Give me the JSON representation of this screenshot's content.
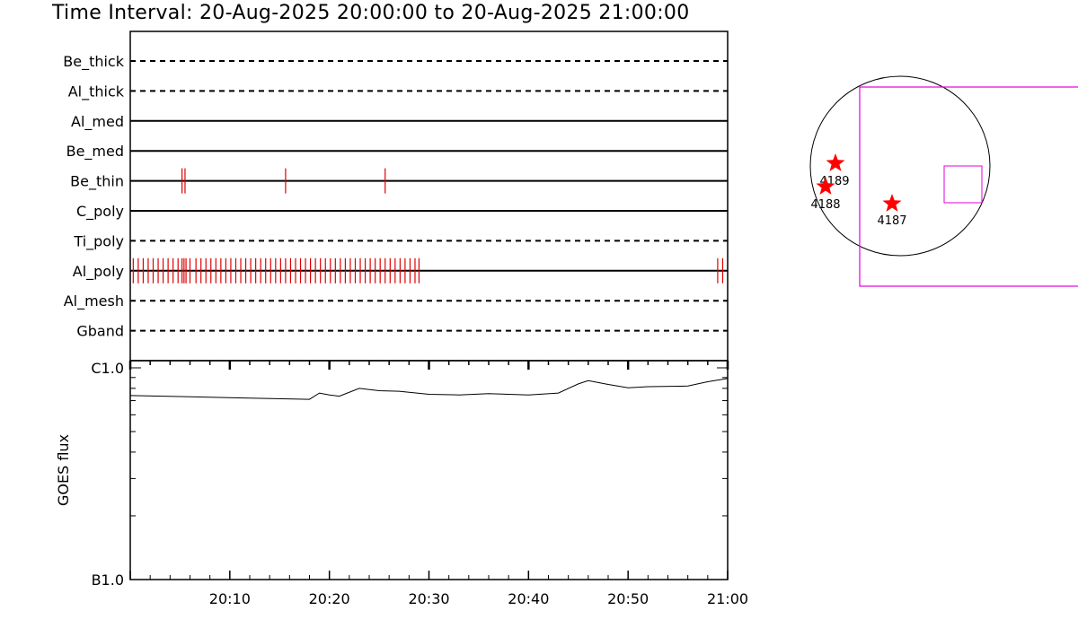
{
  "title": "Time Interval: 20-Aug-2025 20:00:00 to 20-Aug-2025 21:00:00",
  "colors": {
    "event": "#e00000",
    "fov": "#e000e0",
    "line": "#000000",
    "star": "#ff0000"
  },
  "chart_data": [
    {
      "type": "timeline",
      "x_range_minutes": [
        0,
        60
      ],
      "channels": [
        {
          "name": "Be_thick",
          "style": "dashed",
          "events": []
        },
        {
          "name": "Al_thick",
          "style": "dashed",
          "events": []
        },
        {
          "name": "Al_med",
          "style": "solid",
          "events": []
        },
        {
          "name": "Be_med",
          "style": "solid",
          "events": []
        },
        {
          "name": "Be_thin",
          "style": "solid",
          "events": [
            5.2,
            5.5,
            15.6,
            25.6
          ]
        },
        {
          "name": "C_poly",
          "style": "solid",
          "events": []
        },
        {
          "name": "Ti_poly",
          "style": "dashed",
          "events": []
        },
        {
          "name": "Al_poly",
          "style": "solid",
          "events": [
            0.3,
            0.8,
            1.3,
            1.8,
            2.3,
            2.8,
            3.3,
            3.8,
            4.3,
            4.8,
            5.2,
            5.4,
            5.6,
            6.0,
            6.6,
            7.1,
            7.6,
            8.1,
            8.6,
            9.1,
            9.6,
            10.1,
            10.6,
            11.1,
            11.6,
            12.1,
            12.6,
            13.1,
            13.6,
            14.1,
            14.6,
            15.1,
            15.6,
            16.1,
            16.6,
            17.1,
            17.6,
            18.1,
            18.6,
            19.1,
            19.6,
            20.1,
            20.6,
            21.1,
            21.6,
            22.1,
            22.6,
            23.1,
            23.6,
            24.1,
            24.6,
            25.1,
            25.6,
            26.1,
            26.6,
            27.1,
            27.6,
            28.1,
            28.6,
            29.0,
            59.0,
            59.5
          ]
        },
        {
          "name": "Al_mesh",
          "style": "dashed",
          "events": []
        },
        {
          "name": "Gband",
          "style": "dashed",
          "events": []
        }
      ]
    },
    {
      "type": "line",
      "ylabel": "GOES flux",
      "y_scale": "log",
      "y_ticks": [
        {
          "label": "C1.0",
          "value": 1e-06
        },
        {
          "label": "B1.0",
          "value": 1e-07
        }
      ],
      "x_ticks": [
        {
          "label": "20:10",
          "minute": 10
        },
        {
          "label": "20:20",
          "minute": 20
        },
        {
          "label": "20:30",
          "minute": 30
        },
        {
          "label": "20:40",
          "minute": 40
        },
        {
          "label": "20:50",
          "minute": 50
        },
        {
          "label": "21:00",
          "minute": 60
        }
      ],
      "series": [
        {
          "minutes": [
            0,
            6,
            12,
            18,
            19,
            20,
            21,
            23,
            25,
            27,
            30,
            33,
            36,
            40,
            43,
            45,
            46,
            48,
            50,
            52,
            56,
            58,
            60
          ],
          "flux": [
            7.4e-07,
            7.3e-07,
            7.2e-07,
            7.1e-07,
            7.6e-07,
            7.45e-07,
            7.35e-07,
            8e-07,
            7.8e-07,
            7.75e-07,
            7.5e-07,
            7.45e-07,
            7.55e-07,
            7.45e-07,
            7.6e-07,
            8.4e-07,
            8.7e-07,
            8.35e-07,
            8.05e-07,
            8.15e-07,
            8.2e-07,
            8.6e-07,
            8.9e-07
          ]
        }
      ]
    }
  ],
  "solar_map": {
    "active_regions": [
      {
        "label": "4189"
      },
      {
        "label": "4188"
      },
      {
        "label": "4187"
      }
    ]
  }
}
